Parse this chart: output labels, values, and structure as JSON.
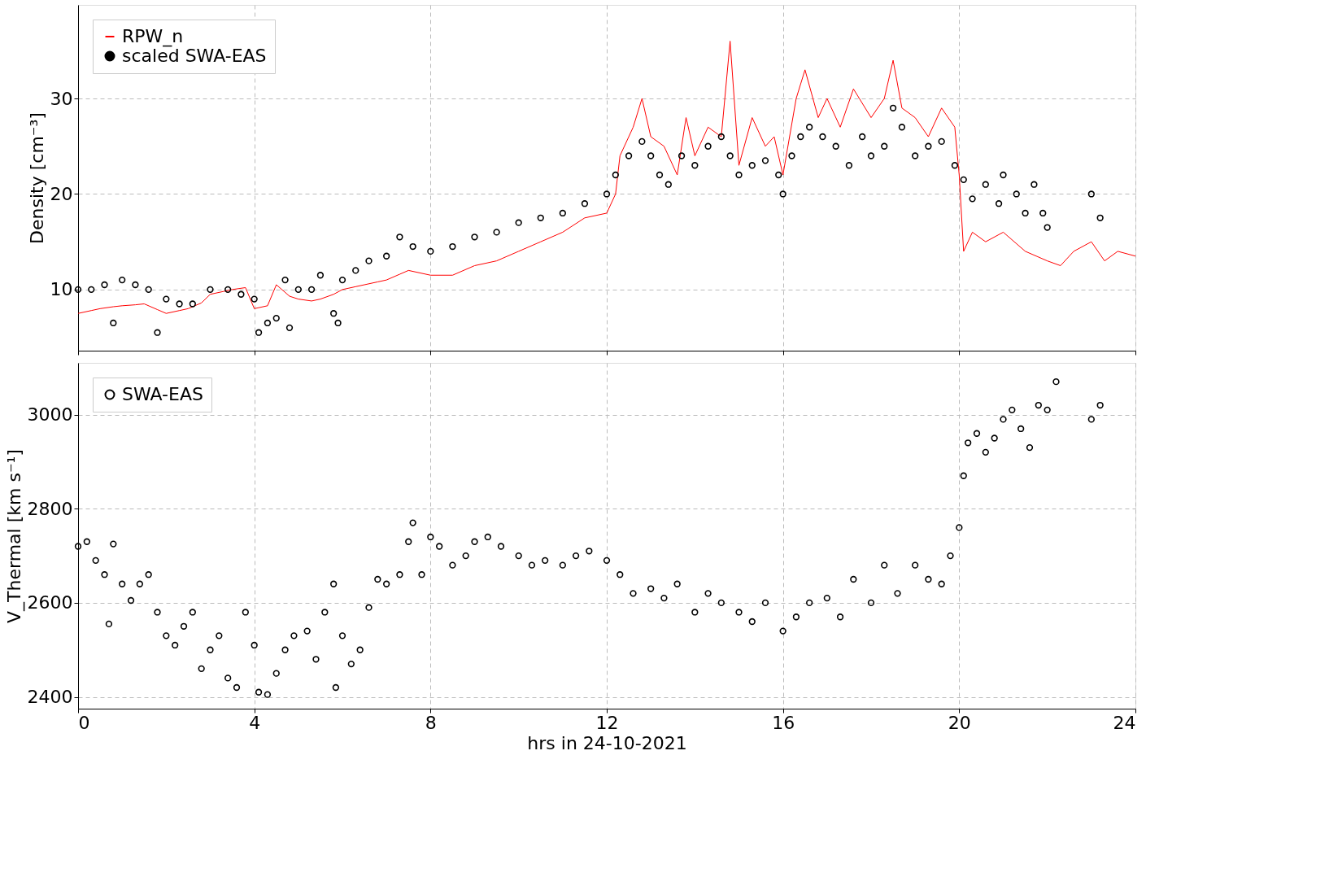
{
  "chart_data": [
    {
      "type": "line",
      "ylabel": "Density [cm⁻³]",
      "xlim": [
        0,
        24
      ],
      "xticks": [
        0,
        4,
        8,
        12,
        16,
        20,
        24
      ],
      "ylim": [
        3.6,
        39.8
      ],
      "yticks": [
        10,
        20,
        30
      ],
      "grid": true,
      "legend": "top left",
      "tick_labels": "y",
      "series": [
        {
          "name": "RPW_n",
          "type": "line",
          "color": "#ff0000",
          "x": [
            0,
            0.3,
            0.5,
            0.8,
            1,
            1.3,
            1.5,
            1.8,
            2,
            2.3,
            2.5,
            2.8,
            3,
            3.3,
            3.5,
            3.8,
            4,
            4.3,
            4.5,
            4.8,
            5,
            5.3,
            5.5,
            5.8,
            6,
            6.3,
            6.5,
            6.8,
            7,
            7.3,
            7.5,
            8,
            8.5,
            9,
            9.5,
            10,
            10.5,
            11,
            11.5,
            12,
            12.2,
            12.3,
            12.6,
            12.8,
            13,
            13.3,
            13.6,
            13.8,
            14,
            14.3,
            14.6,
            14.8,
            15,
            15.3,
            15.6,
            15.8,
            16,
            16.3,
            16.5,
            16.8,
            17,
            17.3,
            17.6,
            18,
            18.3,
            18.5,
            18.7,
            19,
            19.3,
            19.6,
            19.9,
            20,
            20.1,
            20.3,
            20.6,
            21,
            21.5,
            22,
            22.3,
            22.6,
            23,
            23.3,
            23.6,
            24
          ],
          "values": [
            7.5,
            7.8,
            8,
            8.2,
            8.3,
            8.4,
            8.5,
            7.9,
            7.5,
            7.8,
            8,
            8.6,
            9.5,
            9.8,
            10,
            10.2,
            8,
            8.3,
            10.5,
            9.3,
            9,
            8.8,
            9,
            9.5,
            10,
            10.3,
            10.5,
            10.8,
            11,
            11.6,
            12,
            11.5,
            11.5,
            12.5,
            13,
            14,
            15,
            16,
            17.5,
            18,
            20,
            24,
            27,
            30,
            26,
            25,
            22,
            28,
            24,
            27,
            26,
            36,
            23,
            28,
            25,
            26,
            22,
            30,
            33,
            28,
            30,
            27,
            31,
            28,
            30,
            34,
            29,
            28,
            26,
            29,
            27,
            22,
            14,
            16,
            15,
            16,
            14,
            13,
            12.5,
            14,
            15,
            13,
            14,
            13.5
          ]
        },
        {
          "name": "scaled SWA-EAS",
          "type": "scatter",
          "color": "#000000",
          "marker": "circle",
          "x": [
            0,
            0.3,
            0.6,
            0.8,
            1,
            1.3,
            1.6,
            1.8,
            2,
            2.3,
            2.6,
            3,
            3.4,
            3.7,
            4,
            4.1,
            4.3,
            4.5,
            4.7,
            4.8,
            5,
            5.3,
            5.5,
            5.8,
            5.9,
            6,
            6.3,
            6.6,
            7,
            7.3,
            7.6,
            8,
            8.5,
            9,
            9.5,
            10,
            10.5,
            11,
            11.5,
            12,
            12.2,
            12.5,
            12.8,
            13,
            13.2,
            13.4,
            13.7,
            14,
            14.3,
            14.6,
            14.8,
            15,
            15.3,
            15.6,
            15.9,
            16,
            16.2,
            16.4,
            16.6,
            16.9,
            17.2,
            17.5,
            17.8,
            18,
            18.3,
            18.5,
            18.7,
            19,
            19.3,
            19.6,
            19.9,
            20.1,
            20.3,
            20.6,
            20.9,
            21,
            21.3,
            21.5,
            21.7,
            21.9,
            22,
            23,
            23.2
          ],
          "values": [
            10,
            10,
            10.5,
            6.5,
            11,
            10.5,
            10,
            5.5,
            9,
            8.5,
            8.5,
            10,
            10,
            9.5,
            9,
            5.5,
            6.5,
            7,
            11,
            6,
            10,
            10,
            11.5,
            7.5,
            6.5,
            11,
            12,
            13,
            13.5,
            15.5,
            14.5,
            14,
            14.5,
            15.5,
            16,
            17,
            17.5,
            18,
            19,
            20,
            22,
            24,
            25.5,
            24,
            22,
            21,
            24,
            23,
            25,
            26,
            24,
            22,
            23,
            23.5,
            22,
            20,
            24,
            26,
            27,
            26,
            25,
            23,
            26,
            24,
            25,
            29,
            27,
            24,
            25,
            25.5,
            23,
            21.5,
            19.5,
            21,
            19,
            22,
            20,
            18,
            21,
            18,
            16.5,
            20,
            17.5
          ]
        }
      ]
    },
    {
      "type": "scatter",
      "xlabel": "hrs in 24-10-2021",
      "ylabel": "V_Thermal [km s⁻¹]",
      "xlim": [
        0,
        24
      ],
      "xticks": [
        0,
        4,
        8,
        12,
        16,
        20,
        24
      ],
      "ylim": [
        2375,
        3110
      ],
      "yticks": [
        2400,
        2600,
        2800,
        3000
      ],
      "grid": true,
      "legend": "top left",
      "marker": "circle",
      "series": [
        {
          "name": "SWA-EAS",
          "color": "#000000",
          "x": [
            0,
            0.2,
            0.4,
            0.6,
            0.7,
            0.8,
            1,
            1.2,
            1.4,
            1.6,
            1.8,
            2,
            2.2,
            2.4,
            2.6,
            2.8,
            3,
            3.2,
            3.4,
            3.6,
            3.8,
            4,
            4.1,
            4.3,
            4.5,
            4.7,
            4.9,
            5.2,
            5.4,
            5.6,
            5.8,
            5.85,
            6,
            6.2,
            6.4,
            6.6,
            6.8,
            7,
            7.3,
            7.5,
            7.6,
            7.8,
            8,
            8.2,
            8.5,
            8.8,
            9,
            9.3,
            9.6,
            10,
            10.3,
            10.6,
            11,
            11.3,
            11.6,
            12,
            12.3,
            12.6,
            13,
            13.3,
            13.6,
            14,
            14.3,
            14.6,
            15,
            15.3,
            15.6,
            16,
            16.3,
            16.6,
            17,
            17.3,
            17.6,
            18,
            18.3,
            18.6,
            19,
            19.3,
            19.6,
            19.8,
            20,
            20.1,
            20.2,
            20.4,
            20.6,
            20.8,
            21,
            21.2,
            21.4,
            21.6,
            21.8,
            22,
            22.2,
            23,
            23.2
          ],
          "values": [
            2720,
            2730,
            2690,
            2660,
            2555,
            2725,
            2640,
            2605,
            2640,
            2660,
            2580,
            2530,
            2510,
            2550,
            2580,
            2460,
            2500,
            2530,
            2440,
            2420,
            2580,
            2510,
            2410,
            2405,
            2450,
            2500,
            2530,
            2540,
            2480,
            2580,
            2640,
            2420,
            2530,
            2470,
            2500,
            2590,
            2650,
            2640,
            2660,
            2730,
            2770,
            2660,
            2740,
            2720,
            2680,
            2700,
            2730,
            2740,
            2720,
            2700,
            2680,
            2690,
            2680,
            2700,
            2710,
            2690,
            2660,
            2620,
            2630,
            2610,
            2640,
            2580,
            2620,
            2600,
            2580,
            2560,
            2600,
            2540,
            2570,
            2600,
            2610,
            2570,
            2650,
            2600,
            2680,
            2620,
            2680,
            2650,
            2640,
            2700,
            2760,
            2870,
            2940,
            2960,
            2920,
            2950,
            2990,
            3010,
            2970,
            2930,
            3020,
            3010,
            3070,
            2990,
            3020
          ]
        }
      ]
    }
  ]
}
